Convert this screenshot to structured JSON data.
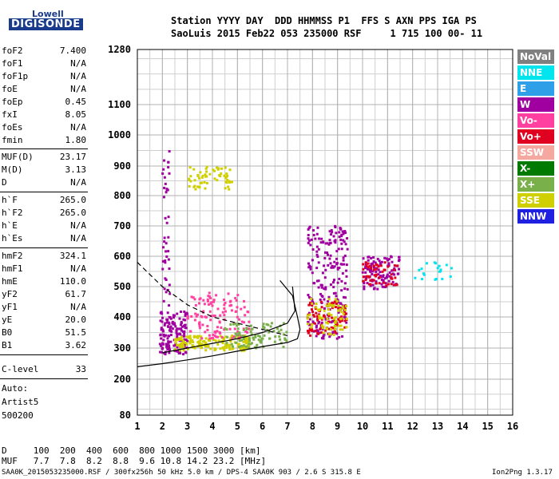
{
  "logo": {
    "line1": "Lowell",
    "line2": "DIGISONDE"
  },
  "header": {
    "line1": "Station YYYY DAY  DDD HHMMSS P1  FFS S AXN PPS IGA PS",
    "line2": "SaoLuis 2015 Feb22 053 235000 RSF     1 715 100 00- 11"
  },
  "params": [
    {
      "k": "foF2",
      "v": "7.400"
    },
    {
      "k": "foF1",
      "v": "N/A"
    },
    {
      "k": "foF1p",
      "v": "N/A"
    },
    {
      "k": "foE",
      "v": "N/A"
    },
    {
      "k": "foEp",
      "v": "0.45"
    },
    {
      "k": "fxI",
      "v": "8.05"
    },
    {
      "k": "foEs",
      "v": "N/A"
    },
    {
      "k": "fmin",
      "v": "1.80"
    },
    {
      "k": "MUF(D)",
      "v": "23.17"
    },
    {
      "k": "M(D)",
      "v": "3.13"
    },
    {
      "k": "D",
      "v": "N/A"
    },
    {
      "k": "h`F",
      "v": "265.0"
    },
    {
      "k": "h`F2",
      "v": "265.0"
    },
    {
      "k": "h`E",
      "v": "N/A"
    },
    {
      "k": "h`Es",
      "v": "N/A"
    },
    {
      "k": "hmF2",
      "v": "324.1"
    },
    {
      "k": "hmF1",
      "v": "N/A"
    },
    {
      "k": "hmE",
      "v": "110.0"
    },
    {
      "k": "yF2",
      "v": "61.7"
    },
    {
      "k": "yF1",
      "v": "N/A"
    },
    {
      "k": "yE",
      "v": "20.0"
    },
    {
      "k": "B0",
      "v": "51.5"
    },
    {
      "k": "B1",
      "v": "3.62"
    },
    {
      "k": "C-level",
      "v": "33"
    }
  ],
  "auto": {
    "l1": "Auto:",
    "l2": "Artist5",
    "l3": "500200"
  },
  "legend": [
    {
      "label": "NoVal",
      "color": "#808080"
    },
    {
      "label": "NNE",
      "color": "#00e5ee"
    },
    {
      "label": "E",
      "color": "#2f9fe8"
    },
    {
      "label": "W",
      "color": "#a000a0"
    },
    {
      "label": "Vo-",
      "color": "#ff40a0"
    },
    {
      "label": "Vo+",
      "color": "#e00020"
    },
    {
      "label": "SSW",
      "color": "#f5a8a0"
    },
    {
      "label": "X-",
      "color": "#007a00"
    },
    {
      "label": "X+",
      "color": "#7ab04a"
    },
    {
      "label": "SSE",
      "color": "#d0d000"
    },
    {
      "label": "NNW",
      "color": "#2020e0"
    }
  ],
  "footer": {
    "d_row": "D     100  200  400  600  800 1000 1500 3000 [km]",
    "muf_row": "MUF   7.7  7.8  8.2  8.8  9.6 10.8 14.2 23.2 [MHz]",
    "info": "SAA0K_2015053235000.RSF / 300fx256h 50 kHz 5.0 km / DPS-4 SAA0K 903 / 2.6 S 315.8 E",
    "version": "Ion2Png 1.3.17"
  },
  "chart_data": {
    "type": "scatter",
    "xlim": [
      1,
      16
    ],
    "ylim": [
      80,
      1280
    ],
    "y_scale": "nonlinear",
    "x_ticks": [
      1,
      2,
      3,
      4,
      5,
      6,
      7,
      8,
      9,
      10,
      11,
      12,
      13,
      14,
      15,
      16
    ],
    "y_ticks": [
      80,
      200,
      300,
      400,
      500,
      600,
      700,
      800,
      900,
      1000,
      1100,
      1280
    ],
    "grid": true,
    "clusters": [
      {
        "x": [
          1.9,
          3.0
        ],
        "y": [
          280,
          420
        ],
        "color": "#a000a0",
        "n": 150
      },
      {
        "x": [
          2.5,
          5.5
        ],
        "y": [
          290,
          340
        ],
        "color": "#d0d000",
        "n": 160
      },
      {
        "x": [
          3.0,
          5.5
        ],
        "y": [
          330,
          480
        ],
        "color": "#ff40a0",
        "n": 120
      },
      {
        "x": [
          4.5,
          7.0
        ],
        "y": [
          300,
          380
        ],
        "color": "#7ab04a",
        "n": 90
      },
      {
        "x": [
          7.8,
          9.4
        ],
        "y": [
          330,
          700
        ],
        "color": "#a000a0",
        "n": 220
      },
      {
        "x": [
          7.8,
          9.4
        ],
        "y": [
          340,
          450
        ],
        "color": "#e00020",
        "n": 90
      },
      {
        "x": [
          7.8,
          9.4
        ],
        "y": [
          340,
          460
        ],
        "color": "#d0d000",
        "n": 70
      },
      {
        "x": [
          10.0,
          11.5
        ],
        "y": [
          490,
          600
        ],
        "color": "#a000a0",
        "n": 110
      },
      {
        "x": [
          10.0,
          11.5
        ],
        "y": [
          500,
          580
        ],
        "color": "#e00020",
        "n": 50
      },
      {
        "x": [
          12.0,
          13.6
        ],
        "y": [
          520,
          580
        ],
        "color": "#00e5ee",
        "n": 20
      },
      {
        "x": [
          3.0,
          4.8
        ],
        "y": [
          820,
          900
        ],
        "color": "#d0d000",
        "n": 60
      },
      {
        "x": [
          2.0,
          2.3
        ],
        "y": [
          300,
          950
        ],
        "color": "#a000a0",
        "n": 50
      }
    ],
    "profile_lower": [
      [
        1,
        240
      ],
      [
        2,
        250
      ],
      [
        3,
        262
      ],
      [
        4,
        275
      ],
      [
        5,
        290
      ],
      [
        6,
        305
      ],
      [
        7,
        318
      ],
      [
        7.4,
        330
      ],
      [
        7.5,
        360
      ],
      [
        7.4,
        400
      ],
      [
        7.2,
        470
      ],
      [
        6.7,
        520
      ]
    ],
    "profile_upper": [
      [
        2,
        285
      ],
      [
        3,
        300
      ],
      [
        4,
        315
      ],
      [
        5,
        330
      ],
      [
        6,
        350
      ],
      [
        7,
        380
      ],
      [
        7.3,
        420
      ],
      [
        7.2,
        500
      ]
    ],
    "profile_dashed": [
      [
        1,
        580
      ],
      [
        2,
        500
      ],
      [
        3,
        440
      ],
      [
        4,
        400
      ],
      [
        5,
        380
      ],
      [
        6,
        360
      ],
      [
        7,
        340
      ]
    ]
  }
}
